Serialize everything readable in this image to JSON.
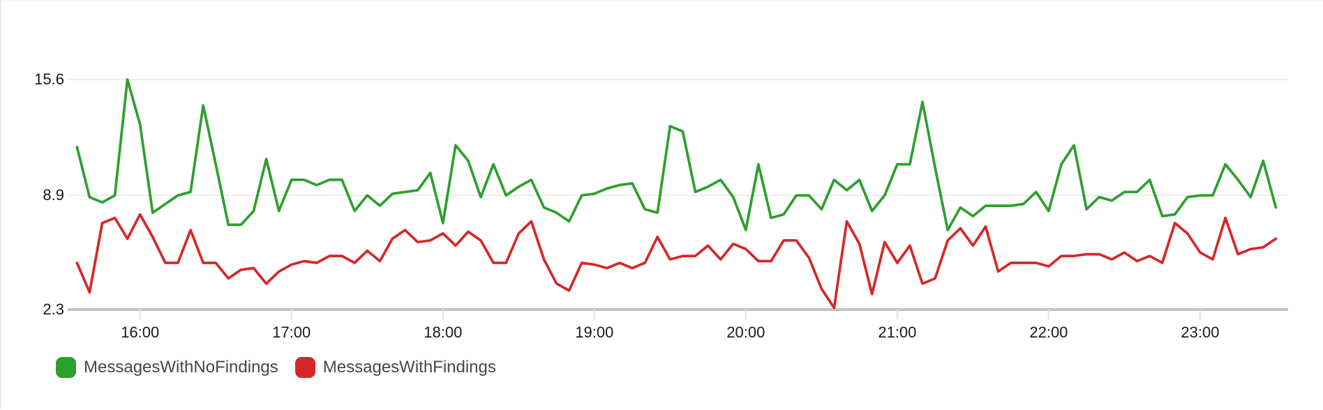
{
  "chart_data": {
    "type": "line",
    "title": "",
    "xlabel": "",
    "ylabel": "",
    "x_start_time": "15:35",
    "x_end_time": "23:30",
    "x_step_minutes": 5,
    "x_tick_labels": [
      "16:00",
      "17:00",
      "18:00",
      "19:00",
      "20:00",
      "21:00",
      "22:00",
      "23:00"
    ],
    "y_tick_labels": [
      "15.6",
      "8.9",
      "2.3"
    ],
    "y_tick_values": [
      15.6,
      8.9,
      2.3
    ],
    "ylim": [
      2.3,
      15.6
    ],
    "grid": "horizontal gridlines at y ticks, light gray",
    "legend_position": "bottom-left",
    "axis_text_color": "#16191f",
    "grid_color": "#ececec",
    "baseline_color": "#c3c3c3",
    "tick_color": "#e4e4e4",
    "series": [
      {
        "name": "MessagesWithNoFindings",
        "color": "#2ca02c",
        "values": [
          11.7,
          8.8,
          8.5,
          8.9,
          15.6,
          13.0,
          7.9,
          8.4,
          8.9,
          9.1,
          14.1,
          10.7,
          7.2,
          7.2,
          8.0,
          11.0,
          8.0,
          9.8,
          9.8,
          9.5,
          9.8,
          9.8,
          8.0,
          8.9,
          8.3,
          9.0,
          9.1,
          9.2,
          10.2,
          7.3,
          11.8,
          10.9,
          8.8,
          10.7,
          8.9,
          9.4,
          9.8,
          8.2,
          7.9,
          7.4,
          8.9,
          9.0,
          9.3,
          9.5,
          9.6,
          8.1,
          7.9,
          12.9,
          12.6,
          9.1,
          9.4,
          9.8,
          8.8,
          6.9,
          10.7,
          7.6,
          7.8,
          8.9,
          8.9,
          8.1,
          9.8,
          9.2,
          9.8,
          8.0,
          8.9,
          10.7,
          10.7,
          14.3,
          10.5,
          6.9,
          8.2,
          7.7,
          8.3,
          8.3,
          8.3,
          8.4,
          9.1,
          8.0,
          10.7,
          11.8,
          8.1,
          8.8,
          8.6,
          9.1,
          9.1,
          9.8,
          7.7,
          7.8,
          8.8,
          8.9,
          8.9,
          10.7,
          9.8,
          8.8,
          10.9,
          8.2
        ]
      },
      {
        "name": "MessagesWithFindings",
        "color": "#d62728",
        "values": [
          5.0,
          3.3,
          7.3,
          7.6,
          6.4,
          7.8,
          6.5,
          5.0,
          5.0,
          6.9,
          5.0,
          5.0,
          4.1,
          4.6,
          4.7,
          3.8,
          4.5,
          4.9,
          5.1,
          5.0,
          5.4,
          5.4,
          5.0,
          5.7,
          5.1,
          6.4,
          6.9,
          6.2,
          6.3,
          6.7,
          6.0,
          6.8,
          6.3,
          5.0,
          5.0,
          6.7,
          7.4,
          5.2,
          3.8,
          3.4,
          5.0,
          4.9,
          4.7,
          5.0,
          4.7,
          5.0,
          6.5,
          5.2,
          5.4,
          5.4,
          6.0,
          5.2,
          6.1,
          5.8,
          5.1,
          5.1,
          6.3,
          6.3,
          5.3,
          3.5,
          2.4,
          7.4,
          6.1,
          3.2,
          6.2,
          5.0,
          6.0,
          3.8,
          4.1,
          6.3,
          7.0,
          6.0,
          7.1,
          4.5,
          5.0,
          5.0,
          5.0,
          4.8,
          5.4,
          5.4,
          5.5,
          5.5,
          5.2,
          5.6,
          5.1,
          5.4,
          5.0,
          7.3,
          6.7,
          5.6,
          5.2,
          7.6,
          5.5,
          5.8,
          5.9,
          6.4
        ]
      }
    ]
  },
  "legend": {
    "items": [
      {
        "label": "MessagesWithNoFindings",
        "color": "#2ca02c"
      },
      {
        "label": "MessagesWithFindings",
        "color": "#d62728"
      }
    ]
  }
}
